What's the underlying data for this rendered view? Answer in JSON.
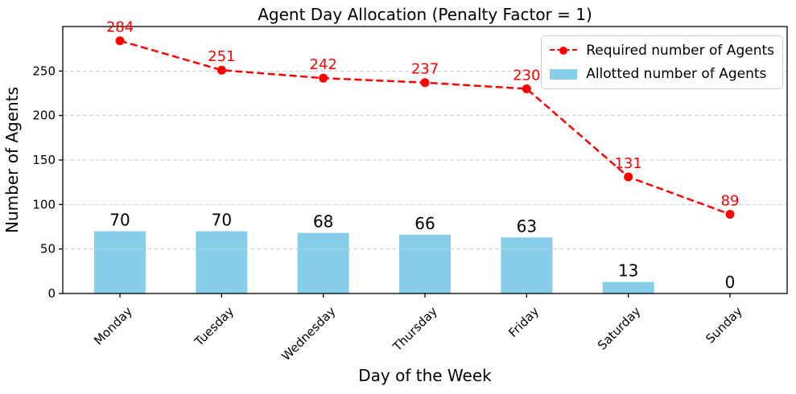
{
  "chart_data": {
    "type": "bar",
    "subtype": "combo: bar series + dashed line series with circle markers and value labels",
    "title": "Agent Day Allocation (Penalty Factor = 1)",
    "xlabel": "Day of the Week",
    "ylabel": "Number of Agents",
    "categories": [
      "Monday",
      "Tuesday",
      "Wednesday",
      "Thursday",
      "Friday",
      "Saturday",
      "Sunday"
    ],
    "series": [
      {
        "name": "Required number of Agents",
        "kind": "line",
        "linestyle": "dashed",
        "marker": "circle",
        "color": "#ff0000",
        "values": [
          284,
          251,
          242,
          237,
          230,
          131,
          89
        ],
        "data_labels": true
      },
      {
        "name": "Allotted number of Agents",
        "kind": "bar",
        "color": "#87ceeb",
        "values": [
          70,
          70,
          68,
          66,
          63,
          13,
          0
        ],
        "data_labels": true
      }
    ],
    "yticks": [
      0,
      50,
      100,
      150,
      200,
      250
    ],
    "ylim": [
      0,
      300
    ],
    "x_tick_rotation": 45,
    "grid": {
      "axis": "y",
      "style": "dashed",
      "color": "#cccccc"
    },
    "legend": {
      "position": "upper right"
    },
    "axis_color": "#000000",
    "text_color": "#000000"
  }
}
